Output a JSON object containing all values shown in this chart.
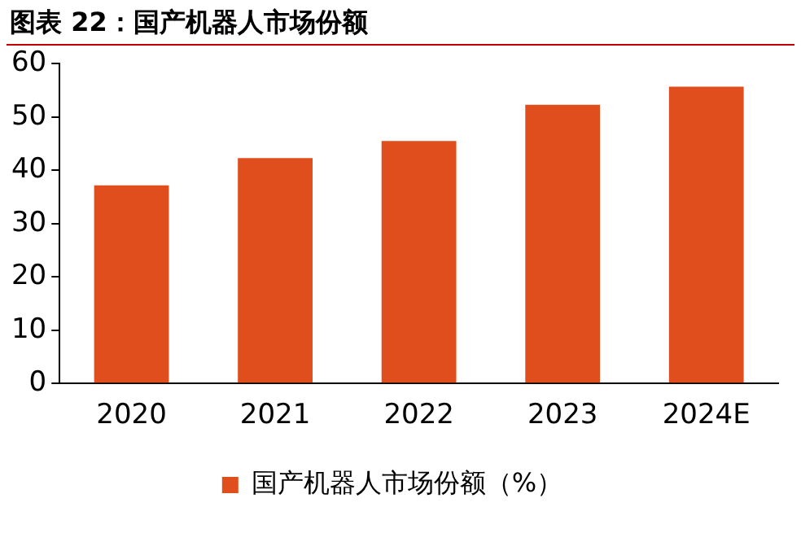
{
  "chart_data": {
    "type": "bar",
    "title": "图表 22：国产机器人市场份额",
    "categories": [
      "2020",
      "2021",
      "2022",
      "2023",
      "2024E"
    ],
    "series": [
      {
        "name": "国产机器人市场份额（%）",
        "color": "#e04e1e",
        "values": [
          37.2,
          42.3,
          45.5,
          52.3,
          55.7
        ]
      }
    ],
    "ylim": [
      0,
      60
    ],
    "yticks": [
      0,
      10,
      20,
      30,
      40,
      50,
      60
    ],
    "grid": false,
    "legend": "bottom"
  }
}
